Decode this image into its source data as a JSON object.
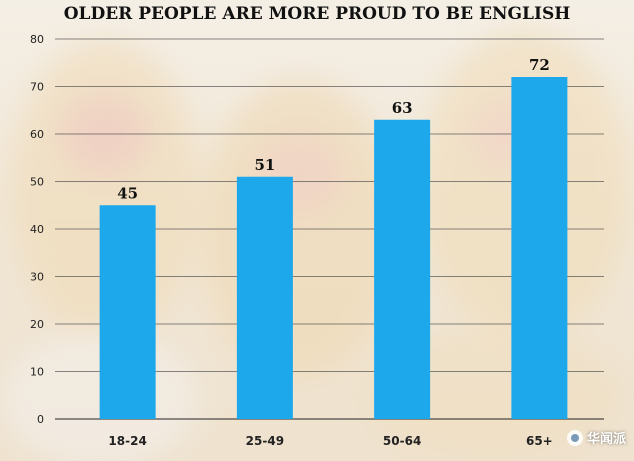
{
  "chart_data": {
    "type": "bar",
    "title": "OLDER PEOPLE ARE MORE PROUD TO BE ENGLISH",
    "categories": [
      "18-24",
      "25-49",
      "50-64",
      "65+"
    ],
    "values": [
      45,
      51,
      63,
      72
    ],
    "xlabel": "",
    "ylabel": "",
    "ylim": [
      0,
      80
    ],
    "yticks": [
      0,
      10,
      20,
      30,
      40,
      50,
      60,
      70,
      80
    ],
    "grid": true,
    "bar_color": "#1ea8ec"
  },
  "watermark": {
    "text": "华闻派",
    "icon": "wechat-icon"
  }
}
